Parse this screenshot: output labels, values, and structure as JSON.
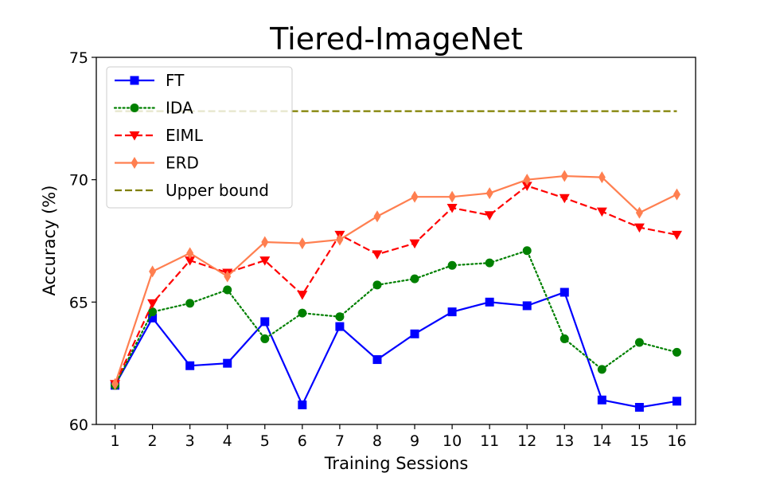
{
  "chart_data": {
    "type": "line",
    "title": "Tiered-ImageNet",
    "xlabel": "Training Sessions",
    "ylabel": "Accuracy (%)",
    "x": [
      1,
      2,
      3,
      4,
      5,
      6,
      7,
      8,
      9,
      10,
      11,
      12,
      13,
      14,
      15,
      16
    ],
    "xlim": [
      0.5,
      16.5
    ],
    "ylim": [
      60,
      75
    ],
    "yticks": [
      60,
      65,
      70,
      75
    ],
    "grid": false,
    "legend_position": "top-left",
    "series": [
      {
        "name": "FT",
        "color": "#0000ff",
        "linestyle": "solid",
        "marker": "square",
        "x": [
          1,
          2,
          3,
          4,
          5,
          6,
          7,
          8,
          9,
          10,
          11,
          12,
          13,
          14,
          15,
          16
        ],
        "values": [
          61.6,
          64.35,
          62.4,
          62.5,
          64.2,
          60.8,
          64.0,
          62.65,
          63.7,
          64.6,
          65.0,
          64.85,
          65.4,
          61.0,
          60.7,
          60.95
        ]
      },
      {
        "name": "IDA",
        "color": "#008000",
        "linestyle": "dotted",
        "marker": "circle",
        "x": [
          1,
          2,
          3,
          4,
          5,
          6,
          7,
          8,
          9,
          10,
          11,
          12,
          13,
          14,
          15,
          16
        ],
        "values": [
          61.6,
          64.6,
          64.95,
          65.5,
          63.5,
          64.55,
          64.4,
          65.7,
          65.95,
          66.5,
          66.6,
          67.1,
          63.5,
          62.25,
          63.35,
          62.95
        ]
      },
      {
        "name": "EIML",
        "color": "#ff0000",
        "linestyle": "dashed",
        "marker": "triangle-down",
        "x": [
          1,
          2,
          3,
          4,
          5,
          6,
          7,
          8,
          9,
          10,
          11,
          12,
          13,
          14,
          15,
          16
        ],
        "values": [
          61.65,
          64.95,
          66.7,
          66.2,
          66.7,
          65.3,
          67.75,
          66.95,
          67.4,
          68.85,
          68.55,
          69.75,
          69.25,
          68.7,
          68.05,
          67.75
        ]
      },
      {
        "name": "ERD",
        "color": "#ff7f50",
        "linestyle": "solid",
        "marker": "thin-diamond",
        "x": [
          1,
          2,
          3,
          4,
          5,
          6,
          7,
          8,
          9,
          10,
          11,
          12,
          13,
          14,
          15,
          16
        ],
        "values": [
          61.65,
          66.25,
          67.0,
          66.05,
          67.45,
          67.4,
          67.55,
          68.5,
          69.3,
          69.3,
          69.45,
          70.0,
          70.15,
          70.1,
          68.65,
          69.4
        ]
      },
      {
        "name": "Upper bound",
        "color": "#808000",
        "linestyle": "dashed",
        "marker": "none",
        "x": [
          1,
          16
        ],
        "values": [
          72.8,
          72.8
        ]
      }
    ]
  }
}
